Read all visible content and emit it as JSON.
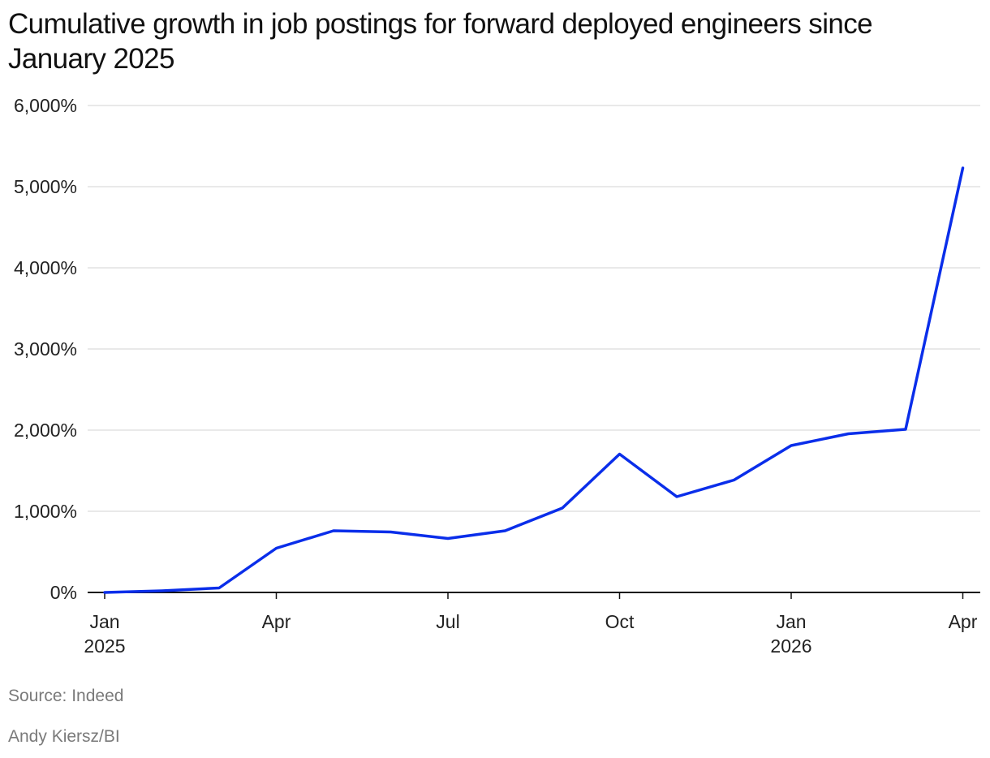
{
  "chart_data": {
    "type": "line",
    "title": "Cumulative growth in job postings for forward deployed engineers since January 2025",
    "xlabel": "",
    "ylabel": "",
    "ylim": [
      0,
      6000
    ],
    "y_ticks": [
      0,
      1000,
      2000,
      3000,
      4000,
      5000,
      6000
    ],
    "y_tick_labels": [
      "0%",
      "1,000%",
      "2,000%",
      "3,000%",
      "4,000%",
      "5,000%",
      "6,000%"
    ],
    "x": [
      "2025-01",
      "2025-02",
      "2025-03",
      "2025-04",
      "2025-05",
      "2025-06",
      "2025-07",
      "2025-08",
      "2025-09",
      "2025-10",
      "2025-11",
      "2025-12",
      "2026-01",
      "2026-02",
      "2026-03",
      "2026-04"
    ],
    "x_tick_labels": [
      {
        "month": "Jan",
        "year": "2025"
      },
      {
        "month": "Apr",
        "year": ""
      },
      {
        "month": "Jul",
        "year": ""
      },
      {
        "month": "Oct",
        "year": ""
      },
      {
        "month": "Jan",
        "year": "2026"
      },
      {
        "month": "Apr",
        "year": ""
      }
    ],
    "series": [
      {
        "color": "#0a2eea",
        "values": [
          0,
          20,
          55,
          545,
          760,
          745,
          665,
          760,
          1040,
          1705,
          1180,
          1385,
          1810,
          1955,
          2010,
          5230
        ]
      }
    ],
    "grid": true,
    "legend": "none"
  },
  "footer": {
    "source": "Source: Indeed",
    "credit": "Andy Kiersz/BI"
  }
}
